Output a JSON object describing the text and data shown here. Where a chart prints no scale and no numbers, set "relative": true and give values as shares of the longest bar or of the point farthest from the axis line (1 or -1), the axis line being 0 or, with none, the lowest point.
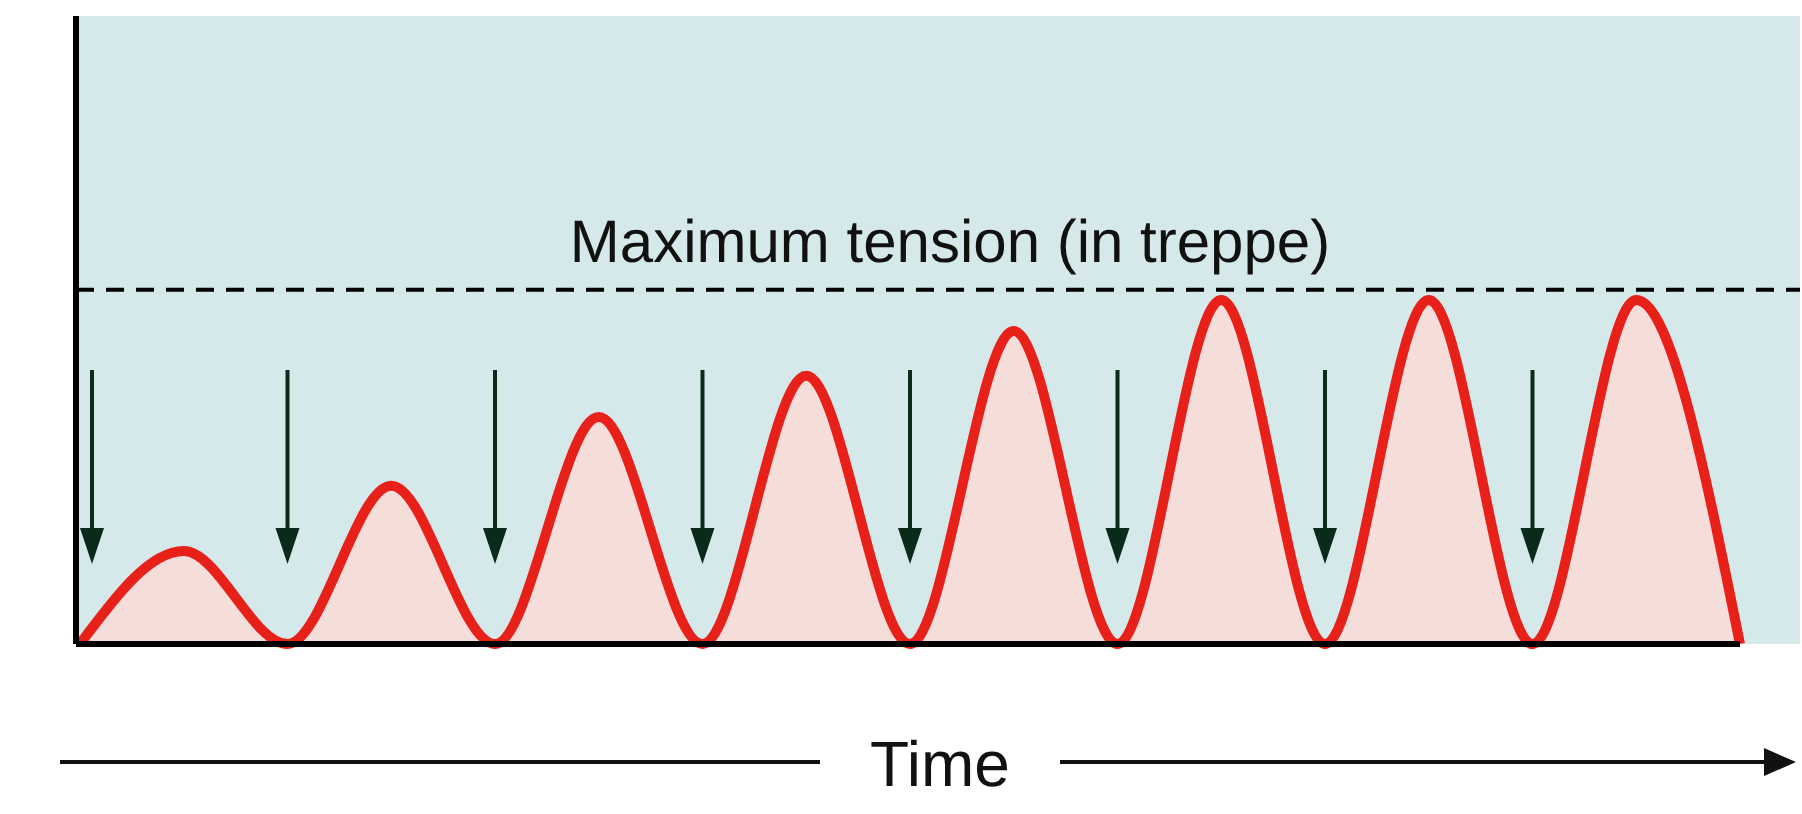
{
  "chart_data": {
    "type": "area",
    "relative": true,
    "xlabel": "Time",
    "categories": [
      null,
      null,
      null,
      null,
      null,
      null,
      null,
      null,
      null,
      null,
      null,
      null,
      null,
      null,
      null,
      null,
      null
    ],
    "series": [
      {
        "color": "#e8201a",
        "values": [
          0,
          0.27,
          0,
          0.46,
          0,
          0.66,
          0,
          0.78,
          0,
          0.91,
          0,
          1,
          0,
          1,
          0,
          1,
          0
        ]
      }
    ],
    "ref_lines": [
      {
        "axis": "y",
        "value": 1.03,
        "label": "Maximum tension (in treppe)",
        "color": "#000000",
        "line_style": "dashed"
      }
    ]
  }
}
